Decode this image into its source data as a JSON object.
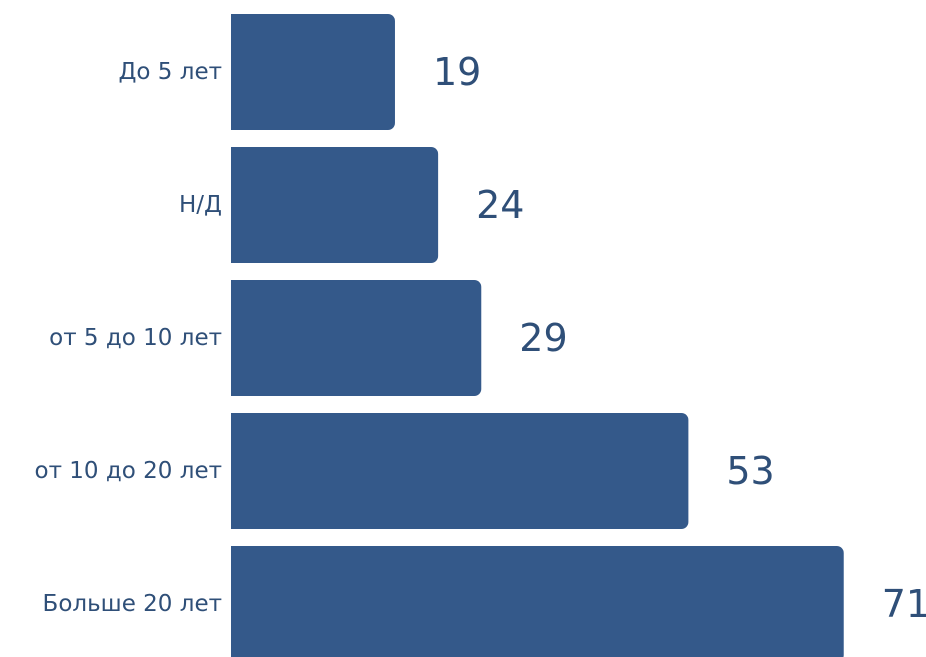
{
  "chart_data": {
    "type": "bar",
    "orientation": "horizontal",
    "categories": [
      "До 5 лет",
      "Н/Д",
      "от 5 до 10 лет",
      "от 10 до 20 лет",
      "Больше 20 лет"
    ],
    "values": [
      19,
      24,
      29,
      53,
      71
    ],
    "title": "",
    "xlabel": "",
    "ylabel": "",
    "grid": false,
    "data_labels": true,
    "bar_color": "#34598a",
    "text_color": "#2f4f78"
  }
}
